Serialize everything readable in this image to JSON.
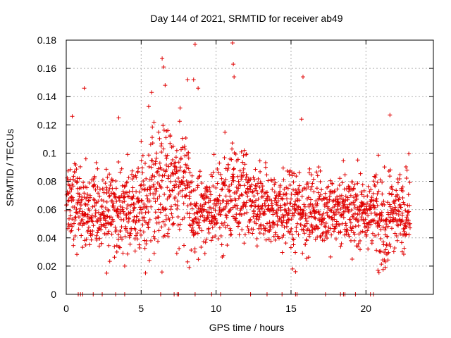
{
  "chart_data": {
    "type": "scatter",
    "title": "Day 144 of 2021, SRMTID for receiver ab49",
    "xlabel": "GPS time / hours",
    "ylabel": "SRMTID / TECUs",
    "xlim": [
      0,
      24.5
    ],
    "ylim": [
      0,
      0.18
    ],
    "x_ticks": [
      0,
      5,
      10,
      15,
      20
    ],
    "x_tick_labels": [
      "0",
      "5",
      "10",
      "15",
      "20"
    ],
    "y_ticks": [
      0,
      0.02,
      0.04,
      0.06,
      0.08,
      0.1,
      0.12,
      0.14,
      0.16,
      0.18
    ],
    "y_tick_labels": [
      "0",
      "0.02",
      "0.04",
      "0.06",
      "0.08",
      "0.1",
      "0.12",
      "0.14",
      "0.16",
      "0.18"
    ],
    "grid": true,
    "marker": "+",
    "color": "#e00000",
    "series": [
      {
        "name": "SRMTID",
        "x_start": 0.0,
        "x_end": 22.95,
        "outliers": [
          {
            "x": 0.4,
            "y": 0.126
          },
          {
            "x": 1.2,
            "y": 0.146
          },
          {
            "x": 3.5,
            "y": 0.125
          },
          {
            "x": 5.5,
            "y": 0.133
          },
          {
            "x": 5.7,
            "y": 0.143
          },
          {
            "x": 6.4,
            "y": 0.167
          },
          {
            "x": 6.5,
            "y": 0.161
          },
          {
            "x": 6.6,
            "y": 0.148
          },
          {
            "x": 7.6,
            "y": 0.132
          },
          {
            "x": 8.1,
            "y": 0.152
          },
          {
            "x": 8.5,
            "y": 0.152
          },
          {
            "x": 8.6,
            "y": 0.177
          },
          {
            "x": 8.8,
            "y": 0.146
          },
          {
            "x": 11.1,
            "y": 0.178
          },
          {
            "x": 11.15,
            "y": 0.163
          },
          {
            "x": 11.2,
            "y": 0.154
          },
          {
            "x": 15.8,
            "y": 0.154
          },
          {
            "x": 15.7,
            "y": 0.124
          },
          {
            "x": 21.6,
            "y": 0.127
          },
          {
            "x": 3.9,
            "y": 0.02
          },
          {
            "x": 2.7,
            "y": 0.015
          },
          {
            "x": 8.2,
            "y": 0.019
          },
          {
            "x": 8.1,
            "y": 0.023
          },
          {
            "x": 21.3,
            "y": 0.019
          },
          {
            "x": 20.8,
            "y": 0.017
          },
          {
            "x": 15.3,
            "y": 0.016
          },
          {
            "x": 15.1,
            "y": 0.018
          }
        ],
        "zero_values_x": [
          0.8,
          0.95,
          1.1,
          1.8,
          2.4,
          3.3,
          3.9,
          6.3,
          7.2,
          7.4,
          7.5,
          8.6,
          9.7,
          10.3,
          12.3,
          13.4,
          14.4,
          15.3,
          15.4,
          17.3,
          18.3,
          18.5,
          18.6,
          19.3,
          20.3,
          20.5
        ]
      }
    ]
  }
}
